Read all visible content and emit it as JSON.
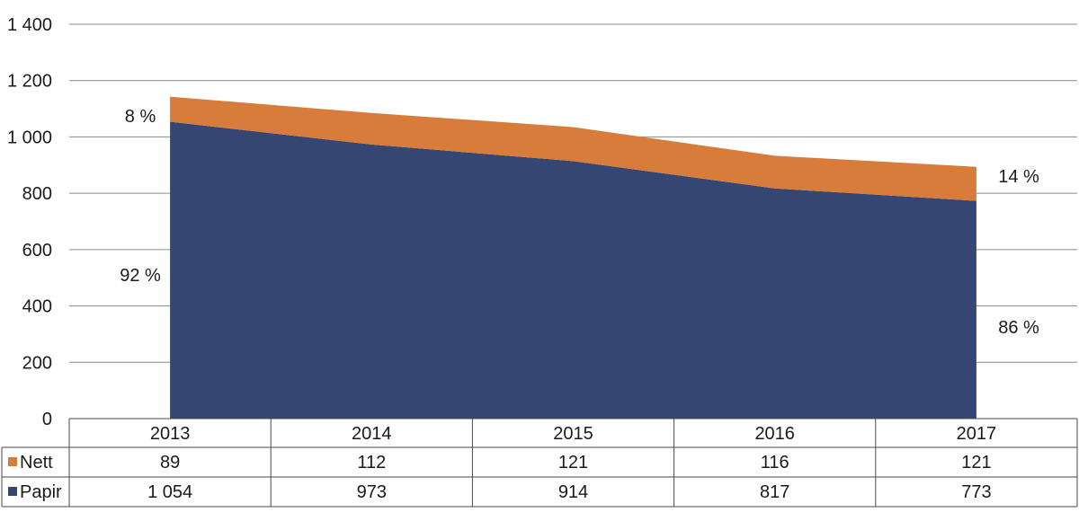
{
  "chart_data": {
    "type": "area",
    "stacked": true,
    "categories": [
      "2013",
      "2014",
      "2015",
      "2016",
      "2017"
    ],
    "series": [
      {
        "name": "Papir",
        "color": "#354673",
        "values": [
          1054,
          973,
          914,
          817,
          773
        ],
        "labels": [
          "1 054",
          "973",
          "914",
          "817",
          "773"
        ]
      },
      {
        "name": "Nett",
        "color": "#d77c3a",
        "values": [
          89,
          112,
          121,
          116,
          121
        ],
        "labels": [
          "89",
          "112",
          "121",
          "116",
          "121"
        ]
      }
    ],
    "ylim": [
      0,
      1400
    ],
    "yticks": [
      0,
      200,
      400,
      600,
      800,
      1000,
      1200,
      1400
    ],
    "ytick_labels": [
      "0",
      "200",
      "400",
      "600",
      "800",
      "1 000",
      "1 200",
      "1 400"
    ],
    "grid": true,
    "data_table": true,
    "annotations": {
      "nett_first": "8 %",
      "papir_first": "92 %",
      "nett_last": "14 %",
      "papir_last": "86 %"
    },
    "title": "",
    "xlabel": "",
    "ylabel": ""
  }
}
